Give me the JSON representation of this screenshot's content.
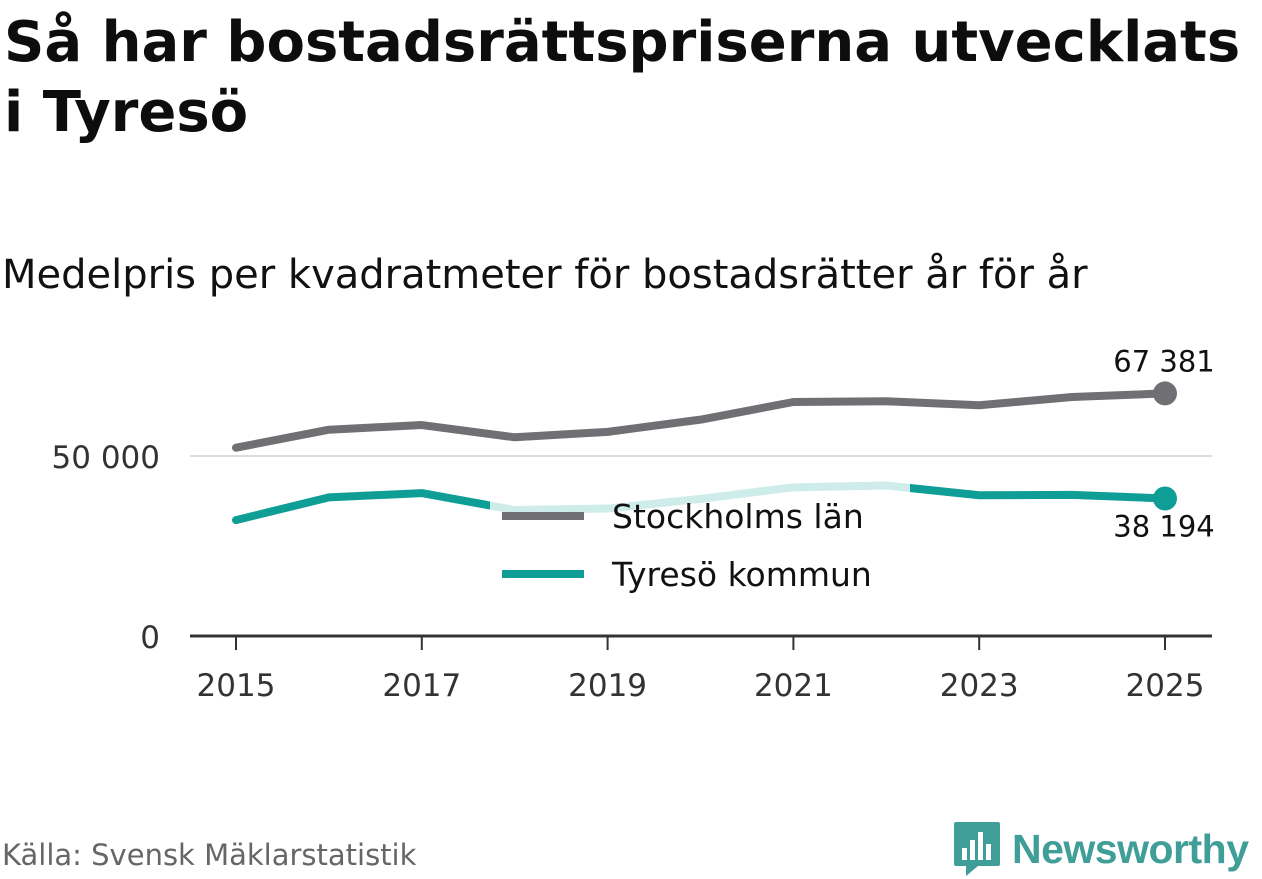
{
  "header": {
    "title": "Så har bostadsrättspriserna utvecklats i Tyresö",
    "subtitle": "Medelpris per kvadratmeter för bostadsrätter år för år"
  },
  "footer": {
    "source": "Källa: Svensk Mäklarstatistik",
    "brand": "Newsworthy"
  },
  "colors": {
    "stockholm": "#707074",
    "tyreso": "#0e9e96",
    "grid": "#dcdcdc",
    "axis": "#333333",
    "brand": "#3f9e98"
  },
  "chart_data": {
    "type": "line",
    "title": "Medelpris per kvadratmeter för bostadsrätter år för år",
    "xlabel": "",
    "ylabel": "",
    "x": [
      2015,
      2016,
      2017,
      2018,
      2019,
      2020,
      2021,
      2022,
      2023,
      2024,
      2025
    ],
    "xticks": [
      "2015",
      "2017",
      "2019",
      "2021",
      "2023",
      "2025"
    ],
    "yticks": [
      {
        "value": 0,
        "label": "0"
      },
      {
        "value": 50000,
        "label": "50 000"
      }
    ],
    "ylim": [
      0,
      75000
    ],
    "grid": true,
    "legend": "center",
    "series": [
      {
        "name": "Stockholms län",
        "values": [
          52300,
          57300,
          58600,
          55200,
          56700,
          60100,
          65000,
          65200,
          64100,
          66400,
          67381
        ],
        "end_label": "67 381",
        "end_label_position": "above"
      },
      {
        "name": "Tyresö kommun",
        "values": [
          32200,
          38500,
          39700,
          35000,
          35400,
          38100,
          41300,
          41800,
          39100,
          39200,
          38194
        ],
        "end_label": "38 194",
        "end_label_position": "below"
      }
    ]
  }
}
